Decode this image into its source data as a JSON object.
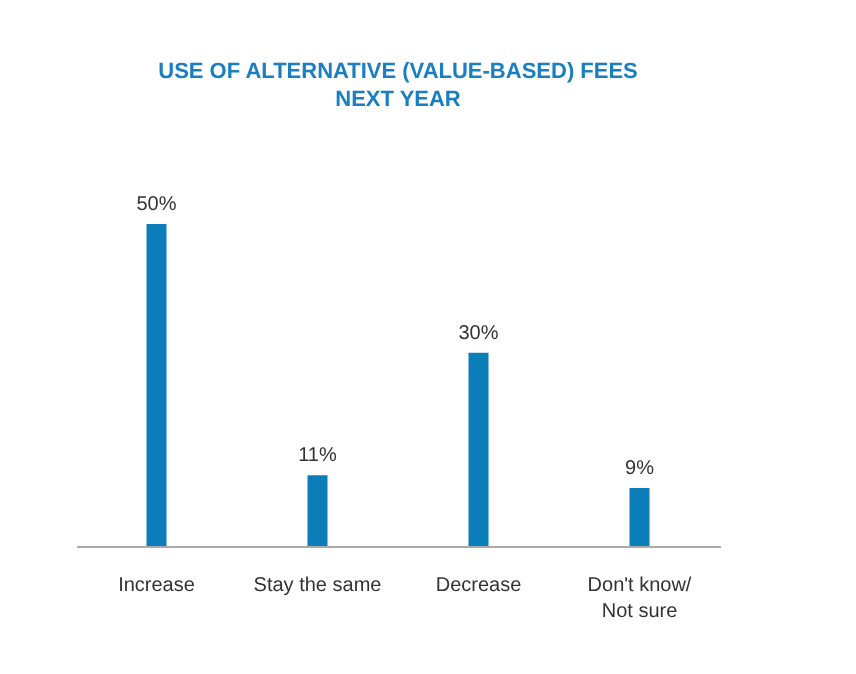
{
  "chart_data": {
    "type": "bar",
    "title": [
      "USE OF ALTERNATIVE (VALUE-BASED) FEES",
      "NEXT YEAR"
    ],
    "categories": [
      "Increase",
      "Stay the same",
      "Decrease",
      "Don't know/ Not sure"
    ],
    "values": [
      50,
      11,
      30,
      9
    ],
    "value_labels": [
      "50%",
      "11%",
      "30%",
      "9%"
    ],
    "color": "#0b7db9"
  }
}
